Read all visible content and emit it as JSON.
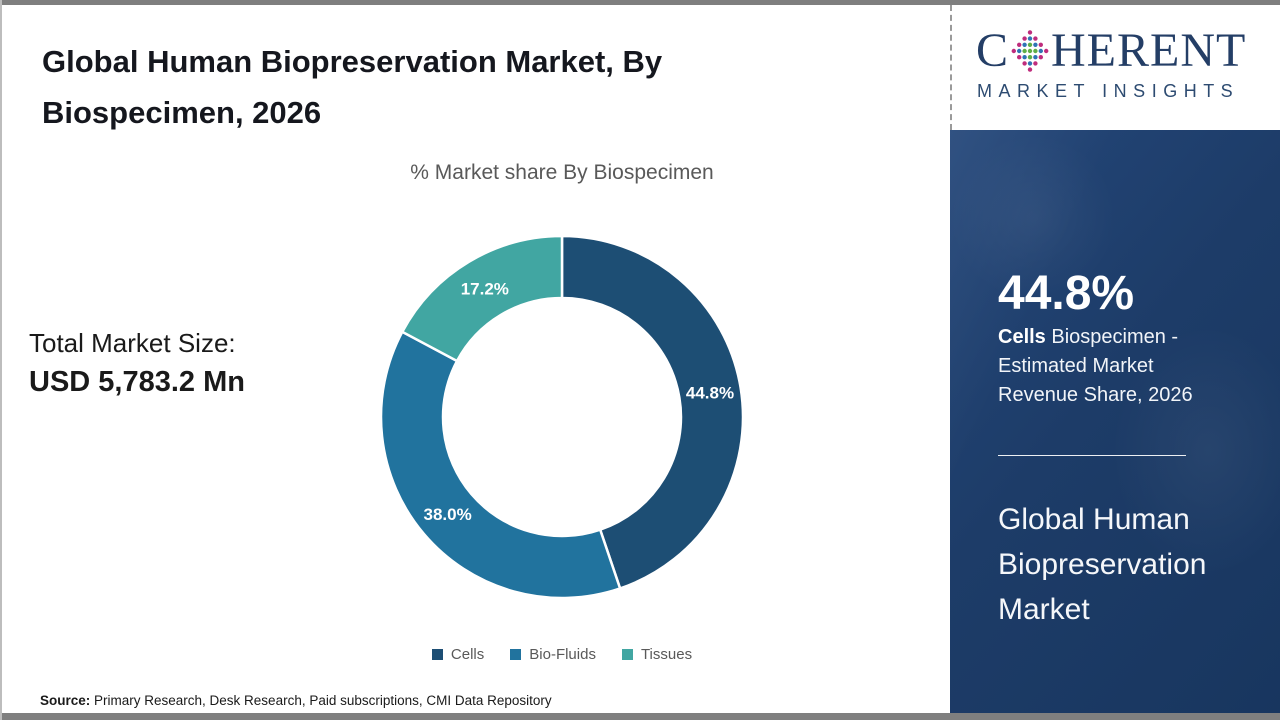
{
  "page": {
    "title_lines": [
      "Global Human Biopreservation Market, By",
      "Biospecimen, 2026"
    ],
    "market_size_label": "Total Market Size:",
    "market_size_value": "USD 5,783.2 Mn",
    "source_prefix": "Source:",
    "source_text": " Primary Research, Desk Research, Paid subscriptions, CMI Data Repository"
  },
  "chart_data": {
    "type": "pie",
    "subtype": "donut",
    "title": "% Market share By Biospecimen",
    "categories": [
      "Cells",
      "Bio-Fluids",
      "Tissues"
    ],
    "values": [
      44.8,
      38.0,
      17.2
    ],
    "labels": [
      "44.8%",
      "38.0%",
      "17.2%"
    ],
    "colors": [
      "#1d4e74",
      "#21739e",
      "#41a6a2"
    ],
    "start_angle_deg": 0,
    "direction": "clockwise",
    "donut_hole_ratio": 0.65,
    "legend_position": "bottom",
    "label_color": "#ffffff"
  },
  "logo": {
    "word_start": "C",
    "word_end": "HERENT",
    "subtitle": "MARKET INSIGHTS",
    "text_color": "#243e66",
    "globe_colors": {
      "inner": "#5fae46",
      "mid": "#2e74b5",
      "outer": "#bf2c7c"
    }
  },
  "panel": {
    "stat_value": "44.8%",
    "stat_desc_bold": "Cells",
    "stat_desc_rest": " Biospecimen - Estimated Market Revenue Share, 2026",
    "market_name": "Global Human Biopreservation Market",
    "background": "#1d3c68"
  }
}
